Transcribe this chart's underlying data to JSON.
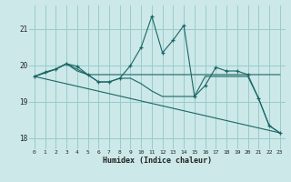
{
  "bg_color": "#cce8e8",
  "grid_color": "#99cccc",
  "line_color": "#1a6666",
  "xlabel": "Humidex (Indice chaleur)",
  "ylim": [
    17.7,
    21.65
  ],
  "xlim": [
    -0.5,
    23.5
  ],
  "yticks": [
    18,
    19,
    20,
    21
  ],
  "xticks": [
    0,
    1,
    2,
    3,
    4,
    5,
    6,
    7,
    8,
    9,
    10,
    11,
    12,
    13,
    14,
    15,
    16,
    17,
    18,
    19,
    20,
    21,
    22,
    23
  ],
  "series1_x": [
    0,
    1,
    2,
    3,
    4,
    5,
    6,
    7,
    8,
    9,
    10,
    11,
    12,
    13,
    14,
    15,
    16,
    17,
    18,
    19,
    20,
    21,
    22,
    23
  ],
  "series1_y": [
    19.7,
    19.82,
    19.9,
    20.05,
    19.98,
    19.75,
    19.55,
    19.55,
    19.65,
    20.0,
    20.5,
    21.35,
    20.35,
    20.7,
    21.1,
    19.15,
    19.45,
    19.95,
    19.85,
    19.85,
    19.75,
    19.1,
    18.35,
    18.15
  ],
  "series2_x": [
    0,
    2,
    3,
    4,
    5,
    6,
    7,
    8,
    9,
    10,
    11,
    12,
    13,
    14,
    15,
    16,
    17,
    18,
    19,
    20,
    21,
    22,
    23
  ],
  "series2_y": [
    19.7,
    19.9,
    20.05,
    19.85,
    19.75,
    19.75,
    19.75,
    19.75,
    19.75,
    19.75,
    19.75,
    19.75,
    19.75,
    19.75,
    19.75,
    19.75,
    19.75,
    19.75,
    19.75,
    19.75,
    19.75,
    19.75,
    19.75
  ],
  "series3_x": [
    0,
    23
  ],
  "series3_y": [
    19.7,
    18.15
  ],
  "series4_x": [
    0,
    2,
    3,
    5,
    6,
    7,
    8,
    9,
    10,
    11,
    12,
    13,
    14,
    15,
    16,
    17,
    18,
    19,
    20,
    21,
    22,
    23
  ],
  "series4_y": [
    19.7,
    19.9,
    20.05,
    19.75,
    19.55,
    19.55,
    19.65,
    19.65,
    19.5,
    19.3,
    19.15,
    19.15,
    19.15,
    19.15,
    19.7,
    19.7,
    19.7,
    19.7,
    19.7,
    19.1,
    18.35,
    18.15
  ]
}
